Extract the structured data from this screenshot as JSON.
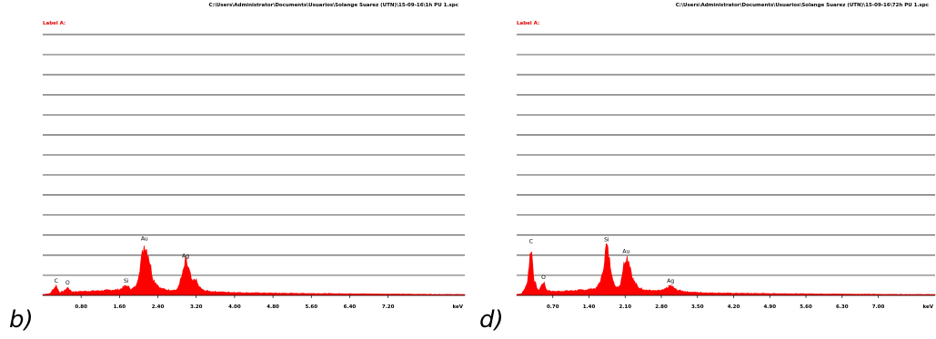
{
  "chart_data": [
    {
      "type": "area",
      "panel_label": "b)",
      "title": "C:\\Users\\Administrator\\Documents\\Usuarios\\Solange Suarez (UTN)\\15-09-16\\1h PU 1.spc",
      "annotation": "Label A:",
      "xlabel": "keV",
      "ylabel": "",
      "xlim": [
        0.0,
        8.8
      ],
      "ylim": [
        0,
        14.5
      ],
      "grid": true,
      "color": "#ff0000",
      "x_ticks": [
        "0.80",
        "1.60",
        "2.40",
        "3.20",
        "4.00",
        "4.80",
        "5.60",
        "6.40",
        "7.20"
      ],
      "x_tick_values": [
        0.8,
        1.6,
        2.4,
        3.2,
        4.0,
        4.8,
        5.6,
        6.4,
        7.2
      ],
      "peaks": [
        {
          "label": "C",
          "x": 0.28,
          "y": 0.55
        },
        {
          "label": "O",
          "x": 0.52,
          "y": 0.45
        },
        {
          "label": "Si",
          "x": 1.74,
          "y": 0.55
        },
        {
          "label": "Au",
          "x": 2.12,
          "y": 2.9
        },
        {
          "label": "Ag",
          "x": 2.98,
          "y": 1.95
        }
      ],
      "x": [
        0.0,
        0.15,
        0.28,
        0.35,
        0.45,
        0.52,
        0.6,
        0.8,
        1.2,
        1.6,
        1.74,
        1.85,
        1.95,
        2.05,
        2.12,
        2.2,
        2.3,
        2.45,
        2.6,
        2.8,
        2.92,
        2.98,
        3.05,
        3.12,
        3.18,
        3.25,
        3.35,
        3.5,
        3.8,
        4.2,
        5.0,
        6.0,
        7.0,
        8.0,
        8.8
      ],
      "y": [
        0.05,
        0.1,
        0.55,
        0.15,
        0.25,
        0.45,
        0.2,
        0.22,
        0.26,
        0.32,
        0.55,
        0.35,
        0.5,
        1.9,
        2.9,
        2.3,
        0.9,
        0.4,
        0.3,
        0.3,
        1.2,
        1.95,
        1.4,
        0.7,
        0.95,
        0.5,
        0.28,
        0.22,
        0.18,
        0.15,
        0.12,
        0.1,
        0.08,
        0.06,
        0.05
      ]
    },
    {
      "type": "area",
      "panel_label": "d)",
      "title": "C:\\Users\\Administrator\\Documents\\Usuarios\\Solange Suarez (UTN)\\15-09-16\\72h PU 1.spc",
      "annotation": "Label A:",
      "xlabel": "keV",
      "ylabel": "",
      "xlim": [
        0.0,
        8.1
      ],
      "ylim": [
        0,
        14.5
      ],
      "grid": true,
      "color": "#ff0000",
      "x_ticks": [
        "0.70",
        "1.40",
        "2.10",
        "2.80",
        "3.50",
        "4.20",
        "4.90",
        "5.60",
        "6.30",
        "7.00"
      ],
      "x_tick_values": [
        0.7,
        1.4,
        2.1,
        2.8,
        3.5,
        4.2,
        4.9,
        5.6,
        6.3,
        7.0
      ],
      "peaks": [
        {
          "label": "C",
          "x": 0.28,
          "y": 2.75
        },
        {
          "label": "O",
          "x": 0.52,
          "y": 0.75
        },
        {
          "label": "Si",
          "x": 1.74,
          "y": 2.85
        },
        {
          "label": "Au",
          "x": 2.12,
          "y": 2.2
        },
        {
          "label": "Ag",
          "x": 2.98,
          "y": 0.55
        }
      ],
      "x": [
        0.0,
        0.1,
        0.2,
        0.28,
        0.34,
        0.42,
        0.52,
        0.58,
        0.7,
        1.0,
        1.3,
        1.55,
        1.65,
        1.74,
        1.82,
        1.9,
        2.0,
        2.08,
        2.12,
        2.18,
        2.25,
        2.35,
        2.5,
        2.7,
        2.85,
        2.98,
        3.1,
        3.3,
        3.6,
        4.2,
        5.0,
        6.0,
        7.0,
        8.1
      ],
      "y": [
        0.05,
        0.1,
        0.6,
        2.75,
        0.8,
        0.25,
        0.75,
        0.3,
        0.22,
        0.25,
        0.3,
        0.4,
        1.0,
        2.85,
        1.6,
        0.45,
        0.55,
        1.8,
        2.2,
        1.9,
        0.9,
        0.45,
        0.3,
        0.25,
        0.3,
        0.55,
        0.3,
        0.2,
        0.15,
        0.12,
        0.1,
        0.08,
        0.06,
        0.05
      ]
    }
  ]
}
